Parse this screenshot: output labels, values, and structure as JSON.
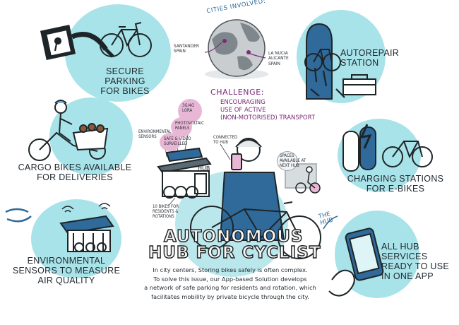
{
  "cities": {
    "heading": "CITIES INVOLVED:",
    "city_a": "SANTANDER SPAIN",
    "city_b": "LA NUCIA ALICANTE SPAIN"
  },
  "challenge": {
    "heading": "CHALLENGE:",
    "line1": "ENCOURAGING",
    "line2": "USE OF ACTIVE",
    "line3": "(NON-MOTORISED) TRANSPORT"
  },
  "features": {
    "secure_parking": [
      "SECURE PARKING",
      "FOR BIKES"
    ],
    "autorepair": [
      "AUTOREPAIR",
      "STATION"
    ],
    "cargo": [
      "CARGO BIKES AVAILABLE",
      "FOR DELIVERIES"
    ],
    "charging": [
      "CHARGING STATIONS",
      "FOR E-BIKES"
    ],
    "sensors": [
      "ENVIRONMENTAL",
      "SENSORS TO MEASURE",
      "AIR QUALITY"
    ],
    "app": [
      "ALL HUB",
      "SERVICES",
      "READY TO USE",
      "IN ONE APP"
    ]
  },
  "hub_labels": {
    "lora": "3G/4G LORA",
    "photovoltaic": "PHOTOVOLTAIC PANELS",
    "env_sensors": "ENVIRONMENTAL SENSORS",
    "safe_video": "SAFE & VIDEO SURVEILLED",
    "connected": "CONNECTED TO HUB",
    "spaces": "SPACES AVAILABLE AT NEXT HUB",
    "bikes_rotation": "10 BIKES FOR RESIDENTS & ROTATIONS",
    "hub_sign": "HUB",
    "the_hub": "THE HUB"
  },
  "title": {
    "line1": "AUTONOMOUS",
    "line2": "HUB FOR CYCLIST"
  },
  "description": [
    "In city centers, Storing bikes safely is often complex.",
    "To solve this issue, our App-based Solution develops",
    "a network of safe parking for residents and rotation, which",
    "facilitates mobility by private bicycle through the city."
  ],
  "colors": {
    "accent_cyan": "#a8e3ea",
    "accent_purple": "#7c2a78",
    "accent_pink": "#e9b7d6"
  }
}
